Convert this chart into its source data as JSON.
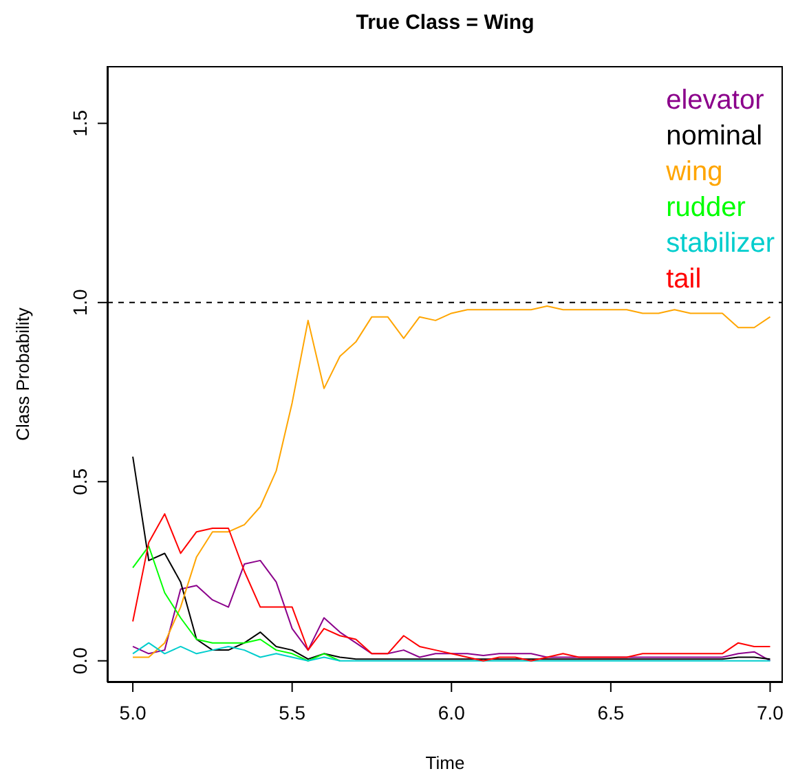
{
  "chart_data": {
    "type": "line",
    "title": "True Class = Wing",
    "xlabel": "Time",
    "ylabel": "Class Probability",
    "x": [
      5.0,
      5.05,
      5.1,
      5.15,
      5.2,
      5.25,
      5.3,
      5.35,
      5.4,
      5.45,
      5.5,
      5.55,
      5.6,
      5.65,
      5.7,
      5.75,
      5.8,
      5.85,
      5.9,
      5.95,
      6.0,
      6.05,
      6.1,
      6.15,
      6.2,
      6.25,
      6.3,
      6.35,
      6.4,
      6.45,
      6.5,
      6.55,
      6.6,
      6.65,
      6.7,
      6.75,
      6.8,
      6.85,
      6.9,
      6.95,
      7.0
    ],
    "series": [
      {
        "name": "elevator",
        "color": "#8b008b",
        "values": [
          0.04,
          0.02,
          0.03,
          0.2,
          0.21,
          0.17,
          0.15,
          0.27,
          0.28,
          0.22,
          0.09,
          0.03,
          0.12,
          0.08,
          0.05,
          0.02,
          0.02,
          0.03,
          0.01,
          0.02,
          0.02,
          0.02,
          0.015,
          0.02,
          0.02,
          0.02,
          0.01,
          0.01,
          0.01,
          0.01,
          0.01,
          0.01,
          0.01,
          0.01,
          0.01,
          0.01,
          0.01,
          0.01,
          0.02,
          0.025,
          0.0
        ]
      },
      {
        "name": "nominal",
        "color": "#000000",
        "values": [
          0.57,
          0.28,
          0.3,
          0.22,
          0.06,
          0.03,
          0.03,
          0.05,
          0.08,
          0.04,
          0.03,
          0.005,
          0.02,
          0.01,
          0.005,
          0.005,
          0.005,
          0.005,
          0.005,
          0.005,
          0.005,
          0.005,
          0.005,
          0.005,
          0.005,
          0.005,
          0.005,
          0.005,
          0.005,
          0.005,
          0.005,
          0.005,
          0.005,
          0.005,
          0.005,
          0.005,
          0.005,
          0.005,
          0.01,
          0.01,
          0.005
        ]
      },
      {
        "name": "wing",
        "color": "#ffa500",
        "values": [
          0.01,
          0.01,
          0.05,
          0.15,
          0.29,
          0.36,
          0.36,
          0.38,
          0.43,
          0.53,
          0.72,
          0.95,
          0.76,
          0.85,
          0.89,
          0.96,
          0.96,
          0.9,
          0.96,
          0.95,
          0.97,
          0.98,
          0.98,
          0.98,
          0.98,
          0.98,
          0.99,
          0.98,
          0.98,
          0.98,
          0.98,
          0.98,
          0.97,
          0.97,
          0.98,
          0.97,
          0.97,
          0.97,
          0.93,
          0.93,
          0.96
        ]
      },
      {
        "name": "rudder",
        "color": "#00ff00",
        "values": [
          0.26,
          0.32,
          0.19,
          0.12,
          0.06,
          0.05,
          0.05,
          0.05,
          0.06,
          0.03,
          0.02,
          0.0,
          0.02,
          0.0,
          null,
          null,
          null,
          null,
          null,
          null,
          null,
          null,
          null,
          null,
          null,
          null,
          null,
          null,
          null,
          null,
          null,
          null,
          null,
          null,
          null,
          null,
          null,
          null,
          null,
          null,
          null
        ]
      },
      {
        "name": "stabilizer",
        "color": "#00cdcd",
        "values": [
          0.02,
          0.05,
          0.02,
          0.04,
          0.02,
          0.03,
          0.04,
          0.03,
          0.01,
          0.02,
          0.01,
          0.0,
          0.01,
          0.0,
          0.0,
          0.0,
          0.0,
          0.0,
          0.0,
          0.0,
          0.0,
          0.0,
          0.0,
          0.0,
          0.0,
          0.0,
          0.0,
          0.0,
          0.0,
          0.0,
          0.0,
          0.0,
          0.0,
          0.0,
          0.0,
          0.0,
          0.0,
          0.0,
          0.0,
          0.0,
          0.0
        ]
      },
      {
        "name": "tail",
        "color": "#ff0000",
        "values": [
          0.11,
          0.33,
          0.41,
          0.3,
          0.36,
          0.37,
          0.37,
          0.25,
          0.15,
          0.15,
          0.15,
          0.03,
          0.09,
          0.07,
          0.06,
          0.02,
          0.02,
          0.07,
          0.04,
          0.03,
          0.02,
          0.01,
          0.0,
          0.01,
          0.01,
          0.0,
          0.01,
          0.02,
          0.01,
          0.01,
          0.01,
          0.01,
          0.02,
          0.02,
          0.02,
          0.02,
          0.02,
          0.02,
          0.05,
          0.04,
          0.04
        ]
      }
    ],
    "xlim": [
      4.92,
      7.04
    ],
    "xticks": [
      {
        "value": 5,
        "label": "5.0"
      },
      {
        "value": 5.5,
        "label": "5.5"
      },
      {
        "value": 6,
        "label": "6.0"
      },
      {
        "value": 6.5,
        "label": "6.5"
      },
      {
        "value": 7,
        "label": "7.0"
      }
    ],
    "ylim": [
      -0.06,
      1.66
    ],
    "yticks": [
      {
        "value": 0,
        "label": "0.0"
      },
      {
        "value": 0.5,
        "label": "0.5"
      },
      {
        "value": 1,
        "label": "1.0"
      },
      {
        "value": 1.5,
        "label": "1.5"
      }
    ],
    "ref_lines": [
      {
        "axis": "y",
        "value": 1,
        "label": null,
        "color": "#000000",
        "line_style": "dashed"
      }
    ],
    "legend": "top right"
  }
}
